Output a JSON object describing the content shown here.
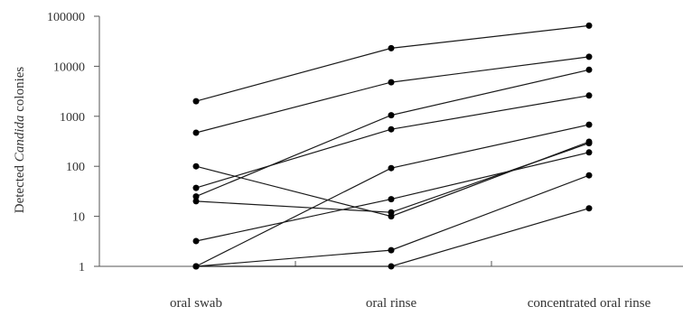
{
  "chart_data": {
    "type": "line",
    "categories": [
      "oral swab",
      "oral rinse",
      "concentrated oral rinse"
    ],
    "yscale": "log",
    "ylim": [
      1,
      100000
    ],
    "yticks": [
      "1",
      "10",
      "100",
      "1000",
      "10000",
      "100000"
    ],
    "ylabel": {
      "before": "Detected ",
      "italic": "Candida",
      "after": " colonies"
    },
    "legend": "none",
    "grid": false,
    "series": [
      {
        "values": [
          2000,
          23000,
          65000
        ]
      },
      {
        "values": [
          470,
          4800,
          15500
        ]
      },
      {
        "values": [
          25,
          1050,
          8500
        ]
      },
      {
        "values": [
          37,
          550,
          2600
        ]
      },
      {
        "values": [
          1,
          92,
          680
        ]
      },
      {
        "values": [
          100,
          10,
          310
        ]
      },
      {
        "values": [
          20,
          12,
          290
        ]
      },
      {
        "values": [
          3.2,
          22,
          190
        ]
      },
      {
        "values": [
          1,
          2.1,
          66
        ]
      },
      {
        "values": [
          1,
          1,
          14.5
        ]
      }
    ]
  }
}
